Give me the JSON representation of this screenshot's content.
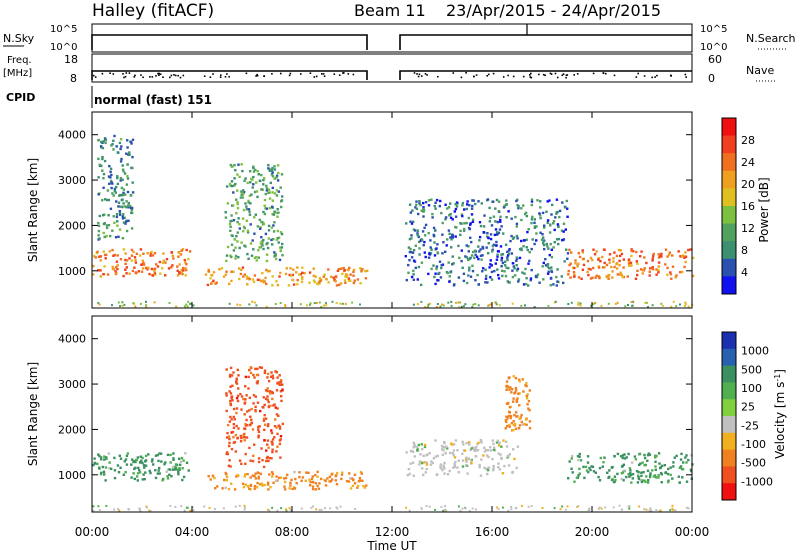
{
  "header": {
    "station": "Halley (fitACF)",
    "beam": "Beam 11",
    "date_range": "23/Apr/2015 - 24/Apr/2015"
  },
  "strips": {
    "nsky": {
      "label": "N.Sky",
      "left_ticks": [
        "10^5",
        "10^0"
      ],
      "right_ticks": [
        "10^5",
        "10^0"
      ],
      "right_label": "N.Search",
      "gap_utc_hours": [
        10.9,
        12.4
      ]
    },
    "freq": {
      "label_line1": "Freq.",
      "label_line2": "[MHz]",
      "left_ticks": [
        "18",
        "8"
      ],
      "right_ticks": [
        "60",
        "0"
      ],
      "right_label": "Nave"
    },
    "cpid": {
      "label": "CPID",
      "text": "normal (fast) 151"
    }
  },
  "time_axis": {
    "label": "Time UT",
    "ticks": [
      "00:00",
      "04:00",
      "08:00",
      "12:00",
      "16:00",
      "20:00",
      "00:00"
    ],
    "range_hours": [
      0,
      24
    ]
  },
  "chart_data": [
    {
      "type": "heatmap",
      "title": "",
      "xlabel": "Time UT",
      "ylabel": "Slant Range [km]",
      "xlim_hours": [
        0,
        24
      ],
      "ylim": [
        180,
        4500
      ],
      "y_ticks": [
        1000,
        2000,
        3000,
        4000
      ],
      "colorbar": {
        "label": "Power [dB]",
        "ticks": [
          "4",
          "8",
          "12",
          "16",
          "20",
          "24",
          "28"
        ],
        "colors": [
          "#1010f0",
          "#2a50b0",
          "#3a9070",
          "#50a060",
          "#7cc040",
          "#e0c020",
          "#f0a020",
          "#f07020",
          "#f04020",
          "#f01010"
        ]
      },
      "echo_regions": [
        {
          "t_start": 0.0,
          "t_end": 3.9,
          "range_low": 900,
          "range_high": 1500,
          "power_db": 24
        },
        {
          "t_start": 0.2,
          "t_end": 1.6,
          "range_low": 1700,
          "range_high": 4000,
          "power_db": 10
        },
        {
          "t_start": 4.5,
          "t_end": 11.0,
          "range_low": 700,
          "range_high": 1100,
          "power_db": 22
        },
        {
          "t_start": 5.3,
          "t_end": 7.6,
          "range_low": 1200,
          "range_high": 3400,
          "power_db": 12
        },
        {
          "t_start": 12.5,
          "t_end": 19.0,
          "range_low": 700,
          "range_high": 2600,
          "power_db": 8
        },
        {
          "t_start": 19.0,
          "t_end": 24.0,
          "range_low": 850,
          "range_high": 1500,
          "power_db": 24
        }
      ]
    },
    {
      "type": "heatmap",
      "title": "",
      "xlabel": "Time UT",
      "ylabel": "Slant Range [km]",
      "xlim_hours": [
        0,
        24
      ],
      "ylim": [
        180,
        4500
      ],
      "y_ticks": [
        1000,
        2000,
        3000,
        4000
      ],
      "colorbar": {
        "label": "Velocity [m s^-1]",
        "ticks": [
          "1000",
          "500",
          "100",
          "25",
          "-25",
          "-100",
          "-500",
          "-1000"
        ],
        "colors": [
          "#1a30b0",
          "#2860b0",
          "#3a9060",
          "#50b050",
          "#80d040",
          "#c0c0c0",
          "#f0b020",
          "#f08020",
          "#f05020",
          "#f01010"
        ]
      },
      "echo_regions": [
        {
          "t_start": 0.0,
          "t_end": 3.9,
          "range_low": 900,
          "range_high": 1500,
          "velocity_ms": 100
        },
        {
          "t_start": 4.5,
          "t_end": 11.0,
          "range_low": 700,
          "range_high": 1100,
          "velocity_ms": -100
        },
        {
          "t_start": 5.3,
          "t_end": 7.6,
          "range_low": 1200,
          "range_high": 3400,
          "velocity_ms": -500
        },
        {
          "t_start": 12.5,
          "t_end": 17.0,
          "range_low": 1000,
          "range_high": 1800,
          "velocity_ms": 0
        },
        {
          "t_start": 16.5,
          "t_end": 17.5,
          "range_low": 2000,
          "range_high": 3200,
          "velocity_ms": -100
        },
        {
          "t_start": 19.0,
          "t_end": 24.0,
          "range_low": 850,
          "range_high": 1500,
          "velocity_ms": 100
        }
      ]
    }
  ]
}
